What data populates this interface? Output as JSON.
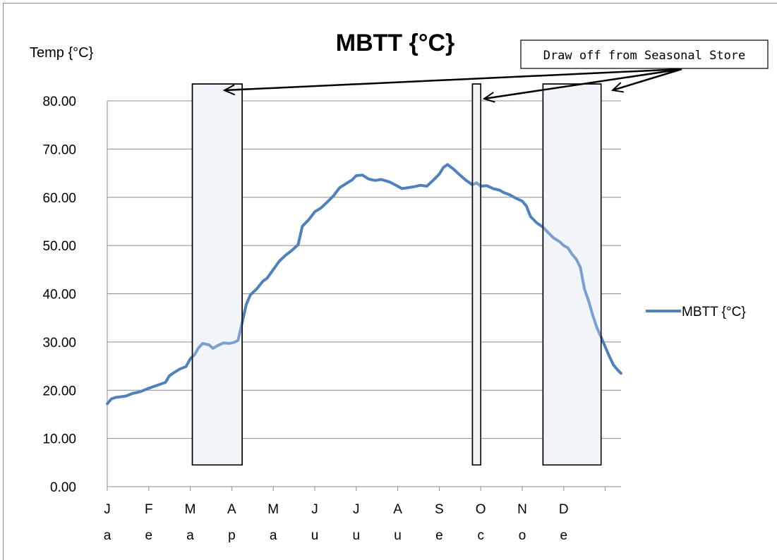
{
  "chart_data": {
    "type": "line",
    "title": "MBTT {°C}",
    "ylabel": "Temp {°C}",
    "ylim": [
      0,
      80
    ],
    "y_ticks": [
      "0.00",
      "10.00",
      "20.00",
      "30.00",
      "40.00",
      "50.00",
      "60.00",
      "70.00",
      "80.00"
    ],
    "x_ticks": [
      {
        "l1": "J",
        "l2": "a"
      },
      {
        "l1": "F",
        "l2": "e"
      },
      {
        "l1": "M",
        "l2": "a"
      },
      {
        "l1": "A",
        "l2": "p"
      },
      {
        "l1": "M",
        "l2": "a"
      },
      {
        "l1": "J",
        "l2": "u"
      },
      {
        "l1": "J",
        "l2": "u"
      },
      {
        "l1": "A",
        "l2": "u"
      },
      {
        "l1": "S",
        "l2": "e"
      },
      {
        "l1": "O",
        "l2": "c"
      },
      {
        "l1": "N",
        "l2": "o"
      },
      {
        "l1": "D",
        "l2": "e"
      }
    ],
    "grid": true,
    "legend_position": "right",
    "series": [
      {
        "name": "MBTT {°C}",
        "color": "#4f81bd",
        "points": [
          [
            0.0,
            17.2
          ],
          [
            0.1,
            18.2
          ],
          [
            0.2,
            18.5
          ],
          [
            0.3,
            18.6
          ],
          [
            0.45,
            18.8
          ],
          [
            0.6,
            19.3
          ],
          [
            0.8,
            19.7
          ],
          [
            1.0,
            20.4
          ],
          [
            1.2,
            21.0
          ],
          [
            1.4,
            21.6
          ],
          [
            1.5,
            23.0
          ],
          [
            1.6,
            23.6
          ],
          [
            1.75,
            24.4
          ],
          [
            1.9,
            24.9
          ],
          [
            2.0,
            26.5
          ],
          [
            2.1,
            27.3
          ],
          [
            2.2,
            28.8
          ],
          [
            2.3,
            29.7
          ],
          [
            2.45,
            29.4
          ],
          [
            2.55,
            28.7
          ],
          [
            2.65,
            29.2
          ],
          [
            2.8,
            29.8
          ],
          [
            2.95,
            29.7
          ],
          [
            3.05,
            29.9
          ],
          [
            3.15,
            30.3
          ],
          [
            3.25,
            34.0
          ],
          [
            3.35,
            37.8
          ],
          [
            3.45,
            39.8
          ],
          [
            3.6,
            41.0
          ],
          [
            3.75,
            42.6
          ],
          [
            3.85,
            43.2
          ],
          [
            4.0,
            45.0
          ],
          [
            4.15,
            46.8
          ],
          [
            4.3,
            48.0
          ],
          [
            4.45,
            49.0
          ],
          [
            4.6,
            50.2
          ],
          [
            4.7,
            54.0
          ],
          [
            4.85,
            55.3
          ],
          [
            5.0,
            57.0
          ],
          [
            5.15,
            57.8
          ],
          [
            5.3,
            59.0
          ],
          [
            5.45,
            60.3
          ],
          [
            5.6,
            62.0
          ],
          [
            5.75,
            62.8
          ],
          [
            5.9,
            63.6
          ],
          [
            6.0,
            64.5
          ],
          [
            6.15,
            64.6
          ],
          [
            6.3,
            63.8
          ],
          [
            6.45,
            63.5
          ],
          [
            6.6,
            63.7
          ],
          [
            6.8,
            63.2
          ],
          [
            7.0,
            62.3
          ],
          [
            7.1,
            61.8
          ],
          [
            7.25,
            62.0
          ],
          [
            7.4,
            62.2
          ],
          [
            7.55,
            62.5
          ],
          [
            7.7,
            62.3
          ],
          [
            7.85,
            63.5
          ],
          [
            8.0,
            64.8
          ],
          [
            8.1,
            66.2
          ],
          [
            8.2,
            66.8
          ],
          [
            8.35,
            65.8
          ],
          [
            8.5,
            64.6
          ],
          [
            8.65,
            63.5
          ],
          [
            8.8,
            62.6
          ],
          [
            8.9,
            63.0
          ],
          [
            9.0,
            62.3
          ],
          [
            9.15,
            62.4
          ],
          [
            9.3,
            61.8
          ],
          [
            9.45,
            61.5
          ],
          [
            9.55,
            61.0
          ],
          [
            9.7,
            60.5
          ],
          [
            9.85,
            59.8
          ],
          [
            10.0,
            59.2
          ],
          [
            10.1,
            58.2
          ],
          [
            10.2,
            56.0
          ],
          [
            10.35,
            54.7
          ],
          [
            10.5,
            53.8
          ],
          [
            10.6,
            52.9
          ],
          [
            10.75,
            51.6
          ],
          [
            10.9,
            50.8
          ],
          [
            11.0,
            50.0
          ],
          [
            11.1,
            49.5
          ],
          [
            11.2,
            48.2
          ],
          [
            11.3,
            47.2
          ],
          [
            11.4,
            45.5
          ],
          [
            11.5,
            41.0
          ],
          [
            11.6,
            38.5
          ],
          [
            11.7,
            35.5
          ],
          [
            11.8,
            33.0
          ],
          [
            11.9,
            31.0
          ],
          [
            12.0,
            29.0
          ],
          [
            12.1,
            27.0
          ],
          [
            12.2,
            25.2
          ],
          [
            12.3,
            24.2
          ],
          [
            12.38,
            23.5
          ]
        ]
      }
    ],
    "highlight_bands": [
      {
        "x_start": 2.05,
        "x_end": 3.25,
        "y_top": 83.5,
        "y_bottom": 4.5
      },
      {
        "x_start": 8.8,
        "x_end": 9.0,
        "y_top": 83.5,
        "y_bottom": 4.5
      },
      {
        "x_start": 10.5,
        "x_end": 11.9,
        "y_top": 83.5,
        "y_bottom": 4.5
      }
    ],
    "annotation": {
      "text": "Draw off from Seasonal Store"
    }
  }
}
